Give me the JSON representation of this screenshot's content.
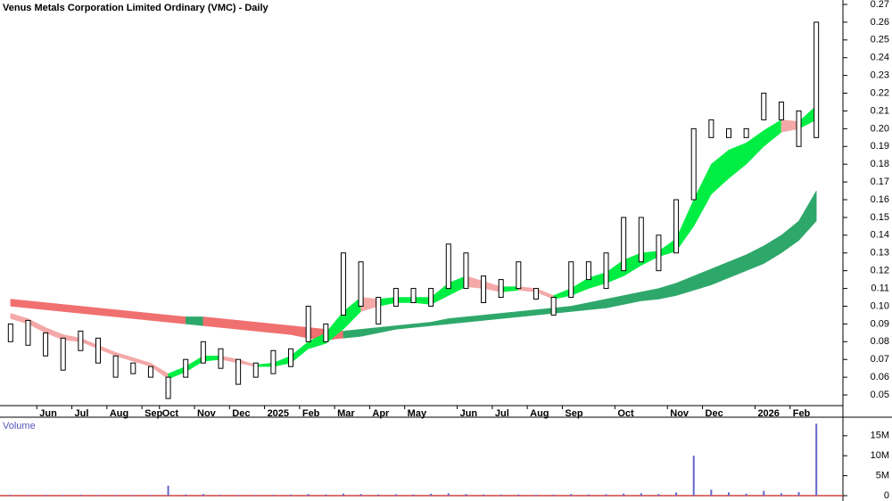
{
  "chart_data": {
    "type": "hilo",
    "title": "Venus Metals Corporation Limited Ordinary (VMC) - Daily",
    "categories": [
      null,
      null,
      "Jun",
      null,
      "Jul",
      null,
      "Aug",
      null,
      "Sep",
      "Oct",
      null,
      "Nov",
      null,
      "Dec",
      null,
      "2025",
      null,
      "Feb",
      null,
      "Mar",
      null,
      "Apr",
      null,
      "May",
      null,
      null,
      "Jun",
      null,
      "Jul",
      null,
      "Aug",
      null,
      "Sep",
      null,
      null,
      "Oct",
      null,
      null,
      "Nov",
      null,
      "Dec",
      null,
      null,
      "2026",
      null,
      "Feb",
      null
    ],
    "high": [
      0.09,
      0.092,
      0.085,
      0.082,
      0.086,
      0.082,
      0.072,
      0.068,
      0.066,
      0.06,
      0.07,
      0.08,
      0.076,
      0.07,
      0.068,
      0.075,
      0.076,
      0.1,
      0.09,
      0.13,
      0.125,
      0.105,
      0.11,
      0.11,
      0.11,
      0.135,
      0.13,
      0.117,
      0.115,
      0.125,
      0.11,
      0.105,
      0.125,
      0.125,
      0.13,
      0.15,
      0.15,
      0.14,
      0.16,
      0.2,
      0.205,
      0.2,
      0.2,
      0.22,
      0.215,
      0.21,
      0.26
    ],
    "low": [
      0.08,
      0.078,
      0.072,
      0.064,
      0.075,
      0.068,
      0.06,
      0.062,
      0.06,
      0.048,
      0.06,
      0.068,
      0.065,
      0.056,
      0.06,
      0.062,
      0.066,
      0.08,
      0.08,
      0.095,
      0.1,
      0.09,
      0.1,
      0.102,
      0.1,
      0.11,
      0.11,
      0.102,
      0.105,
      0.11,
      0.104,
      0.095,
      0.105,
      0.115,
      0.11,
      0.12,
      0.125,
      0.12,
      0.13,
      0.16,
      0.195,
      0.195,
      0.195,
      0.205,
      0.205,
      0.19,
      0.195
    ],
    "bar_color": "#000000",
    "ribbons": [
      {
        "upper": [
          0.104,
          0.103,
          0.102,
          0.101,
          0.1,
          0.099,
          0.098,
          0.097,
          0.096,
          0.095,
          0.094,
          0.094,
          0.093,
          0.092,
          0.091,
          0.09,
          0.089,
          0.088,
          0.087,
          0.086,
          0.087,
          0.088,
          0.089,
          0.09,
          0.091,
          0.093,
          0.094,
          0.095,
          0.096,
          0.097,
          0.098,
          0.099,
          0.1,
          0.102,
          0.104,
          0.106,
          0.108,
          0.11,
          0.113,
          0.117,
          0.121,
          0.125,
          0.129,
          0.134,
          0.14,
          0.148,
          0.165
        ],
        "lower": [
          0.1,
          0.099,
          0.098,
          0.097,
          0.096,
          0.095,
          0.094,
          0.093,
          0.092,
          0.091,
          0.09,
          0.089,
          0.088,
          0.087,
          0.086,
          0.085,
          0.084,
          0.082,
          0.081,
          0.082,
          0.083,
          0.085,
          0.087,
          0.088,
          0.089,
          0.09,
          0.091,
          0.092,
          0.093,
          0.094,
          0.095,
          0.096,
          0.097,
          0.098,
          0.099,
          0.101,
          0.103,
          0.104,
          0.106,
          0.109,
          0.112,
          0.116,
          0.12,
          0.124,
          0.13,
          0.137,
          0.148
        ],
        "rising_color": "#2ea86a",
        "falling_color": "#f07070"
      },
      {
        "upper": [
          0.096,
          0.093,
          0.088,
          0.084,
          0.082,
          0.078,
          0.074,
          0.071,
          0.068,
          0.062,
          0.066,
          0.072,
          0.072,
          0.07,
          0.067,
          0.068,
          0.072,
          0.08,
          0.085,
          0.097,
          0.105,
          0.104,
          0.105,
          0.105,
          0.105,
          0.113,
          0.117,
          0.114,
          0.111,
          0.111,
          0.11,
          0.106,
          0.11,
          0.116,
          0.119,
          0.126,
          0.13,
          0.131,
          0.138,
          0.16,
          0.18,
          0.188,
          0.192,
          0.199,
          0.205,
          0.204,
          0.213
        ],
        "lower": [
          0.093,
          0.09,
          0.085,
          0.081,
          0.08,
          0.076,
          0.072,
          0.069,
          0.066,
          0.059,
          0.063,
          0.069,
          0.07,
          0.068,
          0.066,
          0.066,
          0.068,
          0.076,
          0.079,
          0.087,
          0.097,
          0.1,
          0.102,
          0.102,
          0.101,
          0.106,
          0.111,
          0.11,
          0.108,
          0.109,
          0.108,
          0.104,
          0.106,
          0.11,
          0.113,
          0.117,
          0.123,
          0.128,
          0.131,
          0.145,
          0.163,
          0.172,
          0.18,
          0.19,
          0.198,
          0.2,
          0.205
        ],
        "rising_color": "#00ee44",
        "falling_color": "#f4a8a8"
      }
    ],
    "ylim": [
      0.045,
      0.2725
    ],
    "yticks": [
      0.05,
      0.06,
      0.07,
      0.08,
      0.09,
      {
        "value": 0.1,
        "label": "0.10"
      },
      0.11,
      0.12,
      0.13,
      0.14,
      0.15,
      0.16,
      0.17,
      0.18,
      0.19,
      {
        "value": 0.2,
        "label": "0.20"
      },
      0.21,
      0.22,
      0.23,
      0.24,
      0.25,
      0.26,
      0.27
    ],
    "volume": {
      "label": "Volume",
      "color": "#6666cc",
      "values": [
        200000,
        150000,
        180000,
        150000,
        200000,
        150000,
        120000,
        150000,
        150000,
        2500000,
        300000,
        400000,
        200000,
        150000,
        150000,
        200000,
        250000,
        400000,
        300000,
        500000,
        400000,
        300000,
        350000,
        300000,
        500000,
        600000,
        400000,
        300000,
        250000,
        300000,
        200000,
        250000,
        400000,
        300000,
        350000,
        500000,
        600000,
        400000,
        800000,
        10000000,
        1500000,
        800000,
        500000,
        1200000,
        600000,
        900000,
        18000000
      ],
      "ylim": [
        0,
        19200000
      ],
      "yticks": [
        0,
        {
          "value": 5000000,
          "label": "5M"
        },
        {
          "value": 10000000,
          "label": "10M"
        },
        {
          "value": 15000000,
          "label": "15M"
        }
      ]
    }
  }
}
